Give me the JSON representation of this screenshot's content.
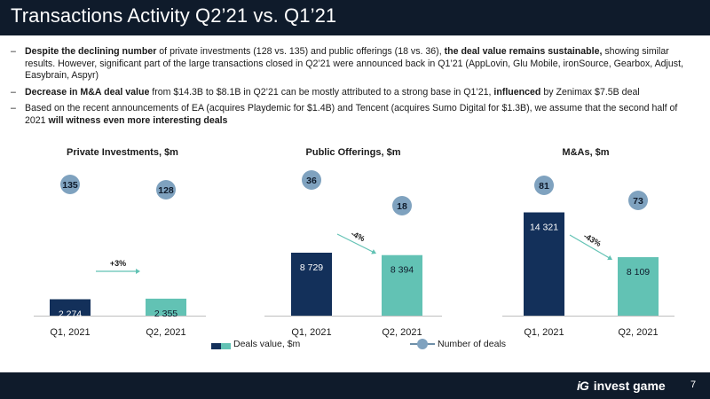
{
  "title": "Transactions Activity Q2’21 vs. Q1’21",
  "bullets": [
    {
      "segments": [
        {
          "text": "Despite the declining number",
          "bold": true
        },
        {
          "text": " of private investments (128 vs. 135) and public offerings (18 vs. 36), ",
          "bold": false
        },
        {
          "text": "the deal value remains sustainable,",
          "bold": true
        },
        {
          "text": " showing similar results. However, significant part of the large transactions closed in Q2’21 were announced back in Q1’21 (AppLovin, Glu Mobile, ironSource, Gearbox, Adjust, Easybrain, Aspyr)",
          "bold": false
        }
      ]
    },
    {
      "segments": [
        {
          "text": "Decrease in M&A deal value",
          "bold": true
        },
        {
          "text": " from $14.3B to $8.1B in Q2’21 can be mostly attributed to a strong base in Q1’21, ",
          "bold": false
        },
        {
          "text": "influenced",
          "bold": true
        },
        {
          "text": " by Zenimax $7.5B deal",
          "bold": false
        }
      ]
    },
    {
      "segments": [
        {
          "text": "Based on the recent announcements of EA (acquires Playdemic for $1.4B) and Tencent (acquires Sumo Digital for $1.3B), we assume that the second half of 2021 ",
          "bold": false
        },
        {
          "text": "will witness even more interesting deals",
          "bold": true
        }
      ]
    }
  ],
  "chart_data": [
    {
      "type": "bar",
      "title": "Private Investments, $m",
      "categories": [
        "Q1, 2021",
        "Q2, 2021"
      ],
      "values": [
        2274,
        2355
      ],
      "value_labels": [
        "2 274",
        "2 355"
      ],
      "deal_counts": [
        135,
        128
      ],
      "change": "+3%",
      "ylim": [
        0,
        15000
      ]
    },
    {
      "type": "bar",
      "title": "Public Offerings, $m",
      "categories": [
        "Q1, 2021",
        "Q2, 2021"
      ],
      "values": [
        8729,
        8394
      ],
      "value_labels": [
        "8 729",
        "8 394"
      ],
      "deal_counts": [
        36,
        18
      ],
      "change": "-4%",
      "ylim": [
        0,
        15000
      ]
    },
    {
      "type": "bar",
      "title": "M&As, $m",
      "categories": [
        "Q1, 2021",
        "Q2, 2021"
      ],
      "values": [
        14321,
        8109
      ],
      "value_labels": [
        "14 321",
        "8 109"
      ],
      "deal_counts": [
        81,
        73
      ],
      "change": "-43%",
      "ylim": [
        0,
        15000
      ]
    }
  ],
  "legend": {
    "deals_value": "Deals value, $m",
    "number_of_deals": "Number of deals"
  },
  "colors": {
    "q1_bar": "#13305a",
    "q2_bar": "#62c2b4",
    "circle": "#7fa2bf",
    "header": "#0f1b2b"
  },
  "footer": {
    "logo_mark": "iG",
    "brand": "invest game",
    "page_number": "7"
  }
}
